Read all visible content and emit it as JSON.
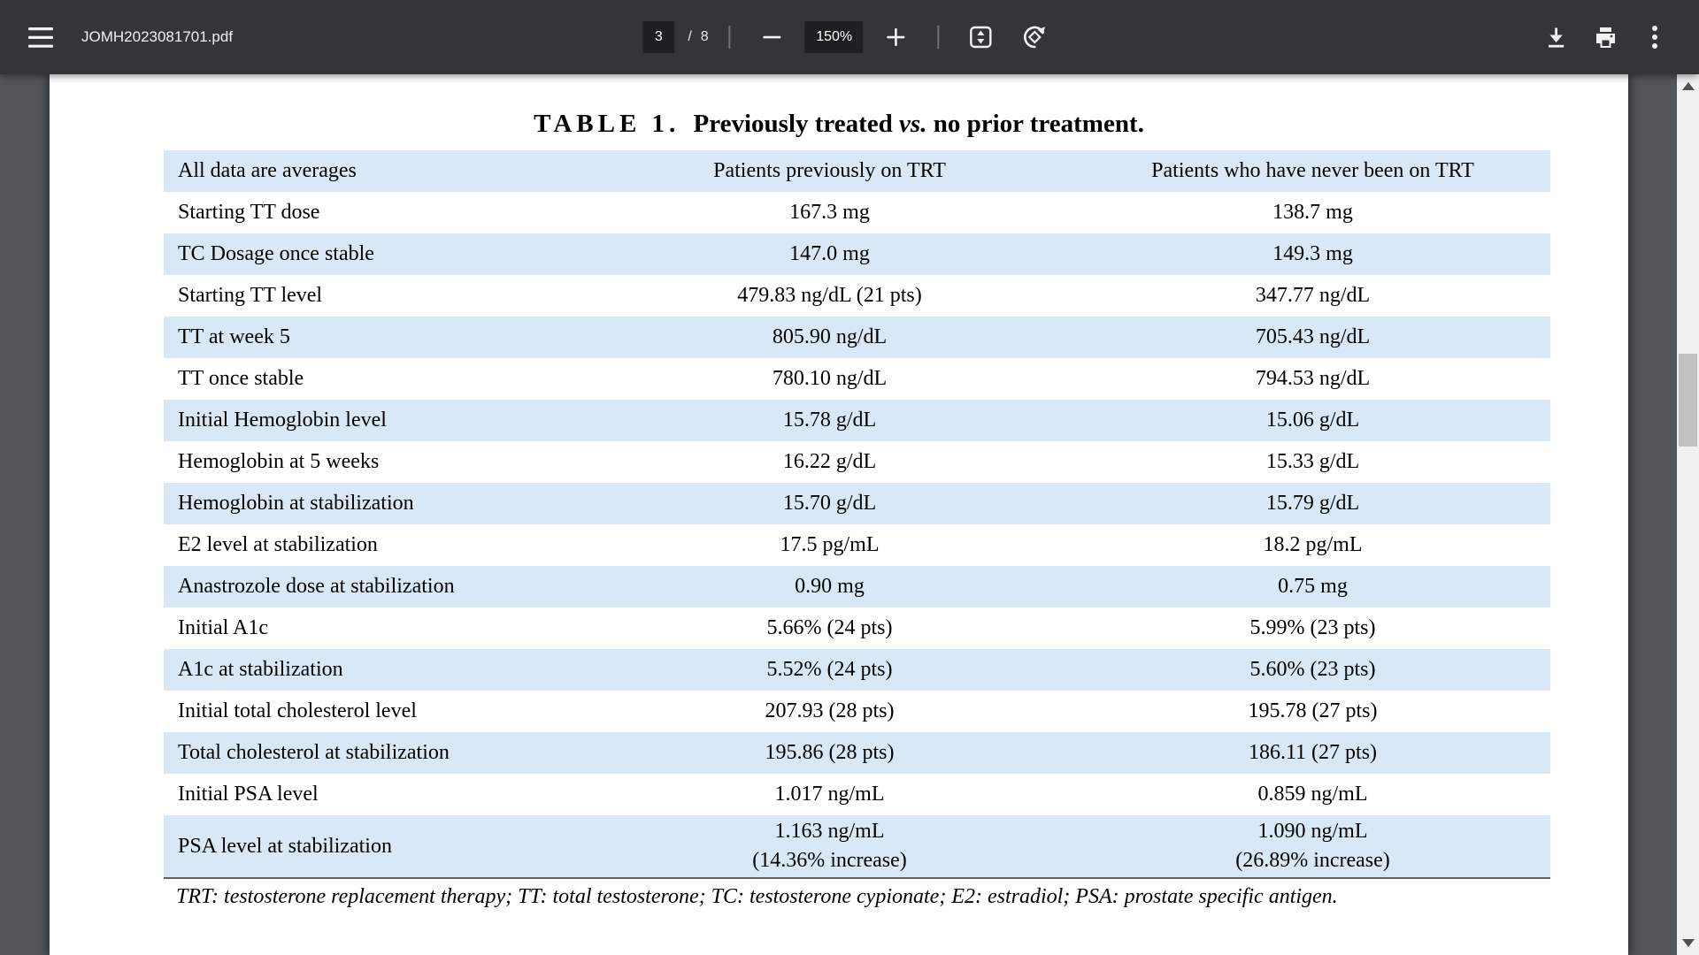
{
  "toolbar": {
    "filename": "JOMH2023081701.pdf",
    "page_current": "3",
    "page_divider": "/",
    "page_total": "8",
    "zoom_level": "150%",
    "icons": {
      "menu": "hamburger-icon",
      "zoom_out": "minus-icon",
      "zoom_in": "plus-icon",
      "fit": "fit-to-page-icon",
      "rotate": "rotate-counterclockwise-icon",
      "download": "download-icon",
      "print": "print-icon",
      "more": "more-vertical-icon"
    }
  },
  "colors": {
    "toolbar_bg": "#323639",
    "viewer_bg": "#525659",
    "table_stripe": "#d9e8f6",
    "scrollbar_track": "#f1f1f1",
    "scrollbar_thumb": "#c1c1c1"
  },
  "pdf_page": {
    "title": {
      "label": "TABLE 1.",
      "part2": "Previously treated",
      "vs": "vs.",
      "part3": "no prior treatment."
    },
    "table": {
      "headers": [
        "All data are averages",
        "Patients previously on TRT",
        "Patients who have never been on TRT"
      ],
      "rows": [
        {
          "label": "Starting TT dose",
          "value1": "167.3 mg",
          "value2": "138.7 mg"
        },
        {
          "label": "TC Dosage once stable",
          "value1": "147.0 mg",
          "value2": "149.3 mg"
        },
        {
          "label": "Starting TT level",
          "value1": "479.83 ng/dL (21 pts)",
          "value2": "347.77 ng/dL"
        },
        {
          "label": "TT at week 5",
          "value1": "805.90 ng/dL",
          "value2": "705.43 ng/dL"
        },
        {
          "label": "TT once stable",
          "value1": "780.10 ng/dL",
          "value2": "794.53 ng/dL"
        },
        {
          "label": "Initial Hemoglobin level",
          "value1": "15.78 g/dL",
          "value2": "15.06 g/dL"
        },
        {
          "label": "Hemoglobin at 5 weeks",
          "value1": "16.22 g/dL",
          "value2": "15.33 g/dL"
        },
        {
          "label": "Hemoglobin at stabilization",
          "value1": "15.70 g/dL",
          "value2": "15.79 g/dL"
        },
        {
          "label": "E2 level at stabilization",
          "value1": "17.5 pg/mL",
          "value2": "18.2 pg/mL"
        },
        {
          "label": "Anastrozole dose at stabilization",
          "value1": "0.90 mg",
          "value2": "0.75 mg"
        },
        {
          "label": "Initial A1c",
          "value1": "5.66% (24 pts)",
          "value2": "5.99% (23 pts)"
        },
        {
          "label": "A1c at stabilization",
          "value1": "5.52% (24 pts)",
          "value2": "5.60% (23 pts)"
        },
        {
          "label": "Initial total cholesterol level",
          "value1": "207.93 (28 pts)",
          "value2": "195.78 (27 pts)"
        },
        {
          "label": "Total cholesterol at stabilization",
          "value1": "195.86 (28 pts)",
          "value2": "186.11 (27 pts)"
        },
        {
          "label": "Initial PSA level",
          "value1": "1.017 ng/mL",
          "value2": "0.859 ng/mL"
        },
        {
          "label": "PSA level at stabilization",
          "value1": "1.163 ng/mL",
          "value1_line2": "(14.36% increase)",
          "value2": "1.090 ng/mL",
          "value2_line2": "(26.89% increase)"
        }
      ],
      "footnote": "TRT: testosterone replacement therapy; TT: total testosterone; TC: testosterone cypionate; E2: estradiol; PSA: prostate specific antigen."
    }
  }
}
